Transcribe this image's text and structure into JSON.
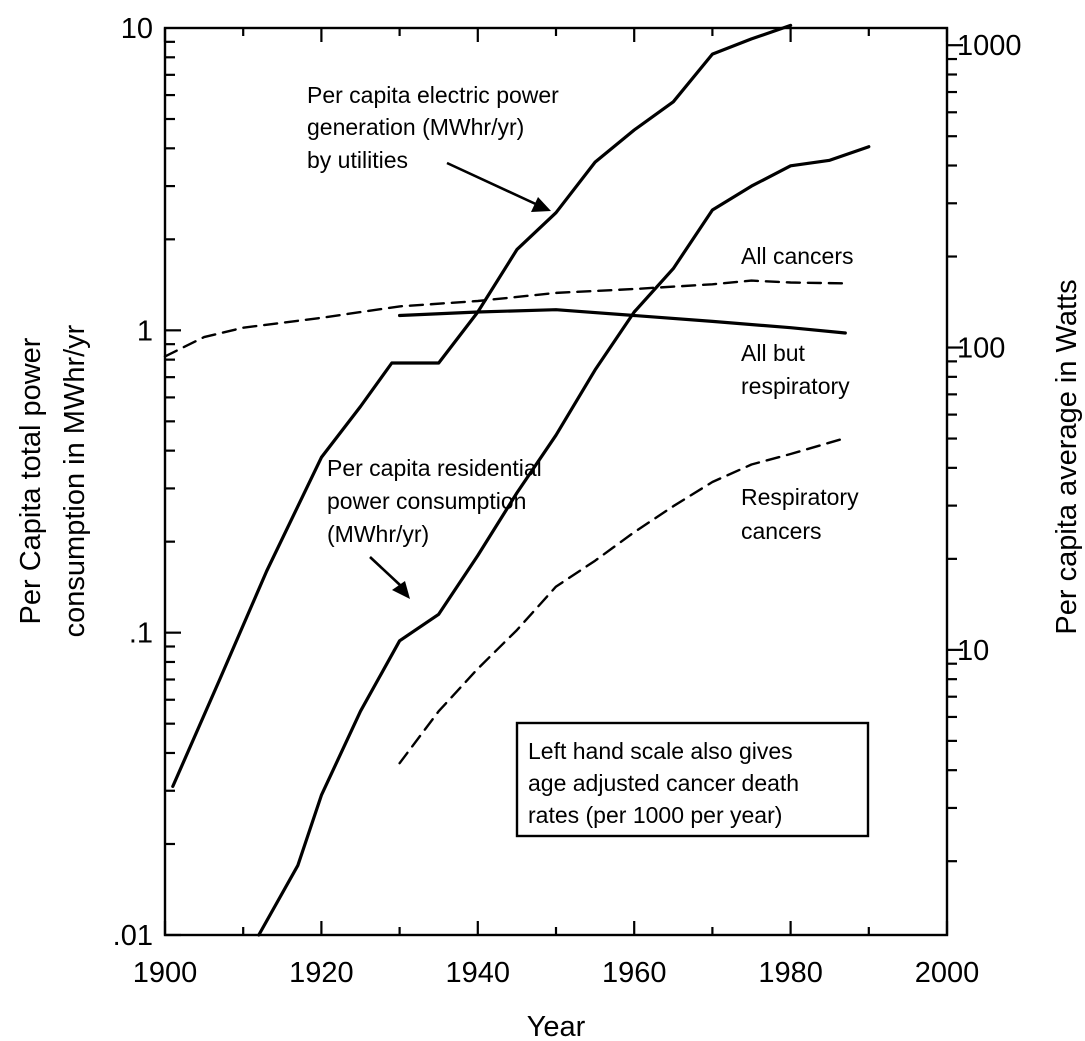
{
  "chart_data": {
    "type": "line",
    "xlabel": "Year",
    "ylabel_left": [
      "Per Capita total power",
      "consumption in MWhr/yr"
    ],
    "ylabel_right": "Per capita average in Watts",
    "xlim": [
      1900,
      2000
    ],
    "x_ticks": [
      1900,
      1920,
      1940,
      1960,
      1980,
      2000
    ],
    "x_tick_labels": [
      "1900",
      "1920",
      "1940",
      "1960",
      "1980",
      "2000"
    ],
    "ylim_left": [
      0.01,
      10
    ],
    "y_scale": "log",
    "y_left_ticks": [
      0.01,
      0.1,
      1,
      10
    ],
    "y_left_tick_labels": [
      ".01",
      ".1",
      "1",
      "10"
    ],
    "ylim_right": [
      1.14,
      1140
    ],
    "y_right_ticks": [
      10,
      100,
      1000
    ],
    "y_right_tick_labels": [
      "10",
      "100",
      "1000"
    ],
    "grid": false,
    "series": [
      {
        "style": "solid",
        "x": [
          1901,
          1907,
          1913,
          1920,
          1925,
          1929,
          1935,
          1940,
          1945,
          1950,
          1955,
          1960,
          1965,
          1970,
          1975,
          1980
        ],
        "y": [
          0.031,
          0.07,
          0.16,
          0.38,
          0.56,
          0.78,
          0.78,
          1.15,
          1.85,
          2.45,
          3.6,
          4.6,
          5.7,
          8.2,
          9.2,
          10.2
        ]
      },
      {
        "style": "solid",
        "x": [
          1912,
          1917,
          1920,
          1925,
          1930,
          1935,
          1940,
          1945,
          1950,
          1955,
          1960,
          1965,
          1970,
          1975,
          1980,
          1985,
          1990
        ],
        "y": [
          0.01,
          0.017,
          0.029,
          0.055,
          0.094,
          0.115,
          0.18,
          0.29,
          0.45,
          0.74,
          1.15,
          1.6,
          2.5,
          3.0,
          3.5,
          3.65,
          4.05
        ]
      },
      {
        "style": "solid",
        "x": [
          1930,
          1940,
          1950,
          1960,
          1970,
          1980,
          1987
        ],
        "y": [
          1.12,
          1.15,
          1.17,
          1.12,
          1.07,
          1.02,
          0.98
        ]
      },
      {
        "style": "dashed",
        "x": [
          1900,
          1905,
          1910,
          1920,
          1930,
          1940,
          1950,
          1960,
          1970,
          1975,
          1980,
          1987
        ],
        "y": [
          0.82,
          0.95,
          1.02,
          1.1,
          1.2,
          1.25,
          1.33,
          1.37,
          1.42,
          1.46,
          1.44,
          1.43
        ]
      },
      {
        "style": "dashed",
        "x": [
          1930,
          1935,
          1940,
          1945,
          1950,
          1955,
          1960,
          1965,
          1970,
          1975,
          1980,
          1987
        ],
        "y": [
          0.037,
          0.055,
          0.076,
          0.102,
          0.142,
          0.173,
          0.215,
          0.262,
          0.315,
          0.36,
          0.39,
          0.44
        ]
      }
    ],
    "annotations": {
      "electric": [
        "Per capita electric power",
        "generation (MWhr/yr)",
        "by utilities"
      ],
      "residential": [
        "Per capita residential",
        "power consumption",
        "(MWhr/yr)"
      ],
      "all_cancers": "All cancers",
      "all_but_resp": [
        "All but",
        "respiratory"
      ],
      "respiratory": [
        "Respiratory",
        "cancers"
      ],
      "note_box": [
        "Left hand scale also gives",
        "age adjusted cancer death",
        "rates (per 1000 per year)"
      ]
    }
  }
}
